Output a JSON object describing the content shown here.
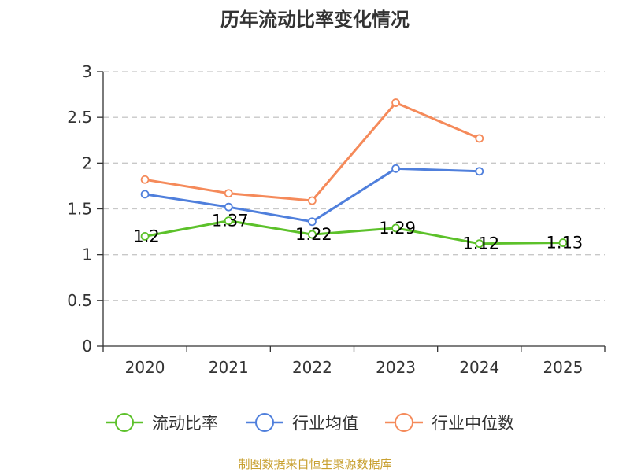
{
  "chart_data": {
    "type": "line",
    "title": "历年流动比率变化情况",
    "categories": [
      "2020",
      "2021",
      "2022",
      "2023",
      "2024",
      "2025"
    ],
    "ylim": [
      0,
      3
    ],
    "yticks": [
      0,
      0.5,
      1,
      1.5,
      2,
      2.5,
      3
    ],
    "ytick_labels": [
      "0",
      "0.5",
      "1",
      "1.5",
      "2",
      "2.5",
      "3"
    ],
    "grid": true,
    "legend_position": "bottom",
    "series": [
      {
        "name": "流动比率",
        "color": "#5cc12a",
        "values": [
          1.2,
          1.37,
          1.22,
          1.29,
          1.12,
          1.13
        ],
        "labels": [
          "1.2",
          "1.37",
          "1.22",
          "1.29",
          "1.12",
          "1.13"
        ],
        "show_labels": true
      },
      {
        "name": "行业均值",
        "color": "#4f7fdc",
        "values": [
          1.66,
          1.52,
          1.36,
          1.94,
          1.91,
          null
        ],
        "show_labels": false
      },
      {
        "name": "行业中位数",
        "color": "#f58a5a",
        "values": [
          1.82,
          1.67,
          1.59,
          2.66,
          2.27,
          null
        ],
        "show_labels": false
      }
    ]
  },
  "footer": {
    "source": "制图数据来自恒生聚源数据库",
    "color": "#c8a030"
  }
}
